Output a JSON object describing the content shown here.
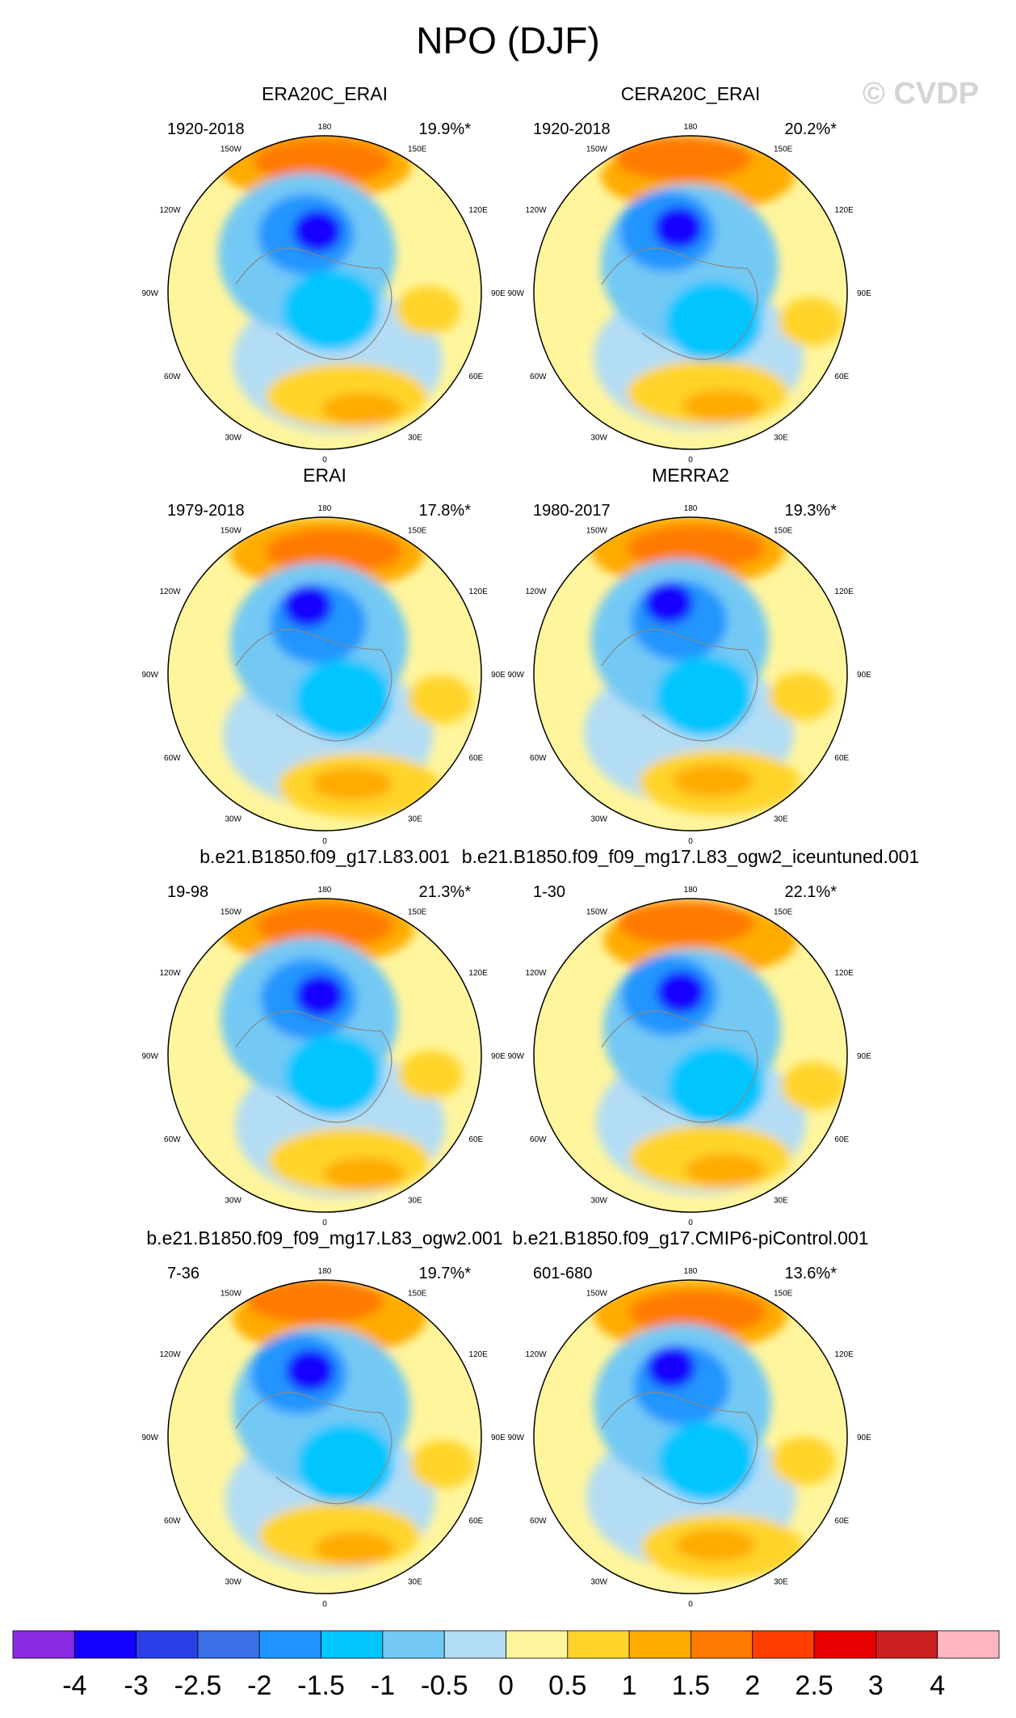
{
  "title": "NPO (DJF)",
  "watermark": "© CVDP",
  "longitude_labels": [
    "180",
    "150E",
    "120E",
    "90E",
    "60E",
    "30E",
    "0",
    "30W",
    "60W",
    "90W",
    "120W",
    "150W"
  ],
  "palette": [
    "#8a2be2",
    "#1400ff",
    "#2a3fe8",
    "#3a6fe6",
    "#2095ff",
    "#00c5ff",
    "#73c9f4",
    "#b3ddf4",
    "#fff59d",
    "#ffd42a",
    "#ffab00",
    "#ff7a00",
    "#ff3f00",
    "#e80000",
    "#cc1f1f",
    "#ffb6c1"
  ],
  "chart_data": {
    "type": "heatmap",
    "projection": "north-polar-stereographic",
    "levels": [
      -4,
      -3,
      -2.5,
      -2,
      -1.5,
      -1,
      -0.5,
      0,
      0.5,
      1,
      1.5,
      2,
      2.5,
      3,
      4
    ],
    "colorbar_labels": [
      "-4",
      "-3",
      "-2.5",
      "-2",
      "-1.5",
      "-1",
      "-0.5",
      "0",
      "0.5",
      "1",
      "1.5",
      "2",
      "2.5",
      "3",
      "4"
    ],
    "panels": [
      {
        "name": "ERA20C_ERAI",
        "years": "1920-2018",
        "pct": "19.9%*"
      },
      {
        "name": "CERA20C_ERAI",
        "years": "1920-2018",
        "pct": "20.2%*"
      },
      {
        "name": "ERAI",
        "years": "1979-2018",
        "pct": "17.8%*"
      },
      {
        "name": "MERRA2",
        "years": "1980-2017",
        "pct": "19.3%*"
      },
      {
        "name": "b.e21.B1850.f09_g17.L83.001",
        "years": "19-98",
        "pct": "21.3%*"
      },
      {
        "name": "b.e21.B1850.f09_f09_mg17.L83_ogw2_iceuntuned.001",
        "years": "1-30",
        "pct": "22.1%*"
      },
      {
        "name": "b.e21.B1850.f09_f09_mg17.L83_ogw2.001",
        "years": "7-36",
        "pct": "19.7%*"
      },
      {
        "name": "b.e21.B1850.f09_g17.CMIP6-piControl.001",
        "years": "601-680",
        "pct": "13.6%*"
      }
    ]
  }
}
